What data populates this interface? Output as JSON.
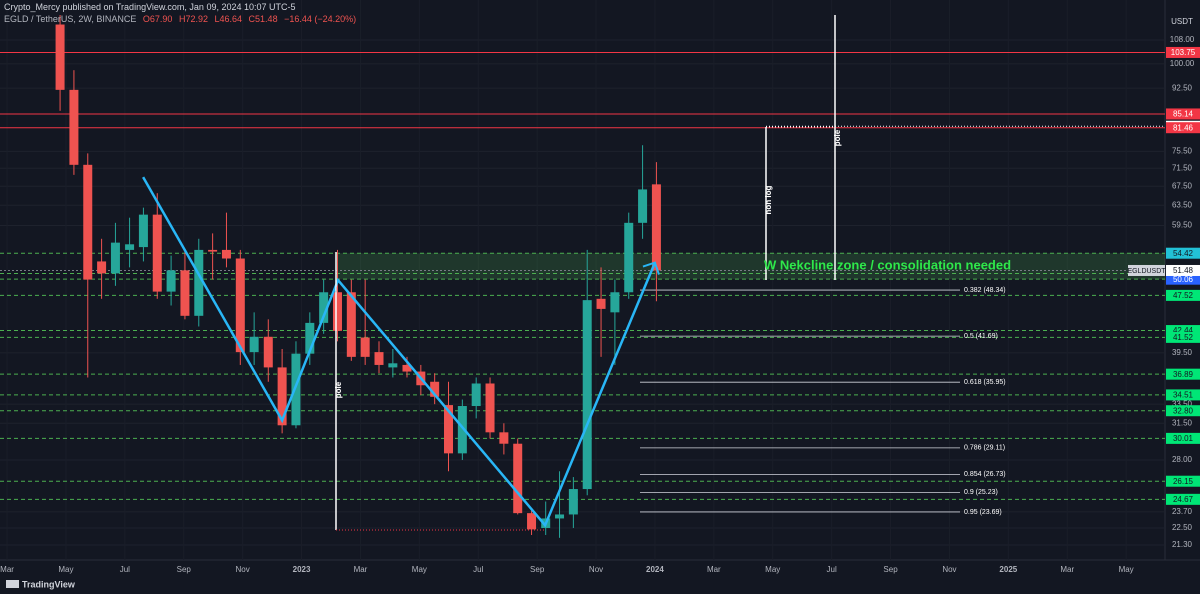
{
  "header": {
    "published": "Crypto_Mercy published on TradingView.com, Jan 09, 2024 10:07 UTC-5",
    "symbol": "EGLD / TetherUS, 2W, BINANCE",
    "ohlc": [
      "O67.90",
      "H72.92",
      "L46.64",
      "C51.48",
      "−16.44 (−24.20%)"
    ]
  },
  "branding": "TradingView",
  "chart_data": {
    "type": "candlestick",
    "currency": "USDT",
    "log_scale": true,
    "grid": true,
    "up_color": "#26a69a",
    "down_color": "#ef5350",
    "xlim": [
      1.76,
      41.32
    ],
    "ylim": [
      20.3,
      117.4
    ],
    "xticks": [
      {
        "value": 2,
        "label": "Mar"
      },
      {
        "value": 4,
        "label": "May"
      },
      {
        "value": 6,
        "label": "Jul"
      },
      {
        "value": 8,
        "label": "Sep"
      },
      {
        "value": 10,
        "label": "Nov"
      },
      {
        "value": 12,
        "label": "2023"
      },
      {
        "value": 14,
        "label": "Mar"
      },
      {
        "value": 16,
        "label": "May"
      },
      {
        "value": 18,
        "label": "Jul"
      },
      {
        "value": 20,
        "label": "Sep"
      },
      {
        "value": 22,
        "label": "Nov"
      },
      {
        "value": 24,
        "label": "2024"
      },
      {
        "value": 26,
        "label": "Mar"
      },
      {
        "value": 28,
        "label": "May"
      },
      {
        "value": 30,
        "label": "Jul"
      },
      {
        "value": 32,
        "label": "Sep"
      },
      {
        "value": 34,
        "label": "Nov"
      },
      {
        "value": 36,
        "label": "2025"
      },
      {
        "value": 38,
        "label": "Mar"
      },
      {
        "value": 40,
        "label": "May"
      }
    ],
    "yticks": [
      {
        "value": 108,
        "label": "108.00"
      },
      {
        "value": 100,
        "label": "100.00"
      },
      {
        "value": 92.5,
        "label": "92.50"
      },
      {
        "value": 75.5,
        "label": "75.50"
      },
      {
        "value": 71.5,
        "label": "71.50"
      },
      {
        "value": 67.5,
        "label": "67.50"
      },
      {
        "value": 63.5,
        "label": "63.50"
      },
      {
        "value": 59.5,
        "label": "59.50"
      },
      {
        "value": 39.5,
        "label": "39.50"
      },
      {
        "value": 33.5,
        "label": "33.50"
      },
      {
        "value": 31.5,
        "label": "31.50"
      },
      {
        "value": 28,
        "label": "28.00"
      },
      {
        "value": 23.7,
        "label": "23.70"
      },
      {
        "value": 22.5,
        "label": "22.50"
      },
      {
        "value": 21.3,
        "label": "21.30"
      }
    ],
    "x": [
      3.8,
      4.27,
      4.74,
      5.21,
      5.68,
      6.16,
      6.63,
      7.1,
      7.57,
      8.04,
      8.51,
      8.98,
      9.45,
      9.92,
      10.39,
      10.87,
      11.34,
      11.81,
      12.28,
      12.75,
      13.22,
      13.69,
      14.16,
      14.63,
      15.1,
      15.58,
      16.05,
      16.52,
      16.99,
      17.46,
      17.93,
      18.4,
      18.87,
      19.34,
      19.81,
      20.29,
      20.76,
      21.23,
      21.7,
      22.17,
      22.64,
      23.11,
      23.58,
      24.05
    ],
    "open": [
      113.5,
      92,
      72.3,
      53,
      51,
      55,
      55.5,
      61.6,
      48.1,
      51.5,
      44.5,
      55,
      55,
      53.5,
      39.6,
      41.6,
      37.7,
      31.3,
      39.4,
      43.5,
      48,
      48,
      41.5,
      39.6,
      37.7,
      38,
      37.2,
      36,
      33.4,
      28.6,
      33.3,
      35.8,
      30.6,
      29.5,
      23.6,
      22.5,
      23.2,
      23.5,
      25.5,
      47,
      45,
      48,
      60,
      67.9
    ],
    "high": [
      117,
      98,
      75,
      57,
      60,
      61,
      63,
      66,
      54,
      55,
      57,
      58,
      62,
      55,
      45,
      44,
      40,
      41,
      45,
      50,
      55,
      50,
      50,
      41,
      40,
      39,
      38,
      37,
      36,
      34,
      36.5,
      36.5,
      31.5,
      30,
      24,
      24.5,
      27,
      26.5,
      55,
      52,
      50,
      62,
      77,
      72.92
    ],
    "low": [
      86,
      70,
      36.5,
      47,
      49,
      52,
      53,
      47,
      46,
      44,
      43,
      50,
      52,
      38,
      38,
      36,
      30.5,
      31,
      38,
      42,
      41,
      38.5,
      38,
      37,
      36.5,
      36.5,
      34.5,
      33.5,
      27,
      28,
      32,
      30,
      28.5,
      23.5,
      22,
      22,
      21.8,
      22.5,
      25,
      39,
      38,
      47,
      57,
      46.64
    ],
    "close": [
      92,
      72.3,
      50,
      51,
      56.3,
      56,
      61.6,
      48.1,
      51.5,
      44.5,
      55,
      54.7,
      53.5,
      39.6,
      41.6,
      37.7,
      31.3,
      39.4,
      43.5,
      48,
      42.4,
      39,
      39,
      38,
      38.2,
      37.2,
      35.6,
      34.3,
      28.6,
      33.3,
      35.8,
      30.6,
      29.5,
      23.6,
      22.4,
      23.2,
      23.5,
      25.5,
      46.8,
      45.5,
      48,
      60,
      66.8,
      51.48
    ],
    "pattern": {
      "color": "#29b6f6",
      "x": [
        6.62,
        11.34,
        13.24,
        20.27,
        24.0
      ],
      "values": [
        69.5,
        31.8,
        49.9,
        22.7,
        52.8
      ]
    },
    "levels": [
      {
        "value": 103.75,
        "label": "103.75",
        "color": "#f23645",
        "text_color": "#ffffff",
        "style": "solid"
      },
      {
        "value": 85.14,
        "label": "85.14",
        "color": "#f23645",
        "text_color": "#ffffff",
        "style": "solid"
      },
      {
        "value": 81.84,
        "label": "81.84",
        "color": "#ffffff",
        "text_color": "#131722",
        "style": "dotted"
      },
      {
        "value": 81.46,
        "label": "81.46",
        "color": "#f23645",
        "text_color": "#ffffff",
        "style": "solid"
      },
      {
        "value": 54.42,
        "label": "54.42",
        "color": "#22c1d6",
        "text_color": "#131722",
        "style": "dashed"
      },
      {
        "value": 50.99,
        "label": "50.99",
        "color": "#00e676",
        "text_color": "#131722",
        "style": "dashed"
      },
      {
        "value": 50.06,
        "label": "50.06",
        "color": "#2962ff",
        "text_color": "#ffffff",
        "style": "dashed"
      },
      {
        "value": 47.52,
        "label": "47.52",
        "color": "#00e676",
        "text_color": "#131722",
        "style": "dashed"
      },
      {
        "value": 42.44,
        "label": "42.44",
        "color": "#00e676",
        "text_color": "#131722",
        "style": "dashed"
      },
      {
        "value": 41.52,
        "label": "41.52",
        "color": "#00e676",
        "text_color": "#131722",
        "style": "dashed"
      },
      {
        "value": 36.89,
        "label": "36.89",
        "color": "#00e676",
        "text_color": "#131722",
        "style": "dashed"
      },
      {
        "value": 34.51,
        "label": "34.51",
        "color": "#00e676",
        "text_color": "#131722",
        "style": "dashed"
      },
      {
        "value": 32.8,
        "label": "32.80",
        "color": "#00e676",
        "text_color": "#131722",
        "style": "dashed"
      },
      {
        "value": 30.01,
        "label": "30.01",
        "color": "#00e676",
        "text_color": "#131722",
        "style": "dashed"
      },
      {
        "value": 26.15,
        "label": "26.15",
        "color": "#00e676",
        "text_color": "#131722",
        "style": "dashed"
      },
      {
        "value": 24.67,
        "label": "24.67",
        "color": "#00e676",
        "text_color": "#131722",
        "style": "dashed"
      }
    ],
    "last_price": {
      "symbol": "EGLDUSDT",
      "value": 51.48,
      "label": "51.48"
    },
    "fib": [
      {
        "value": 48.34,
        "label": "0.382 (48.34)"
      },
      {
        "value": 41.69,
        "label": "0.5 (41.69)"
      },
      {
        "value": 35.95,
        "label": "0.618 (35.95)"
      },
      {
        "value": 29.11,
        "label": "0.786 (29.11)"
      },
      {
        "value": 26.73,
        "label": "0.854 (26.73)"
      },
      {
        "value": 25.23,
        "label": "0.9 (25.23)"
      },
      {
        "value": 23.69,
        "label": "0.95 (23.69)"
      }
    ],
    "annotations": {
      "zone": "W Nekcline zone / consolidation needed",
      "pole1": "pole",
      "non_log": "non log",
      "pole2": "pole"
    }
  }
}
